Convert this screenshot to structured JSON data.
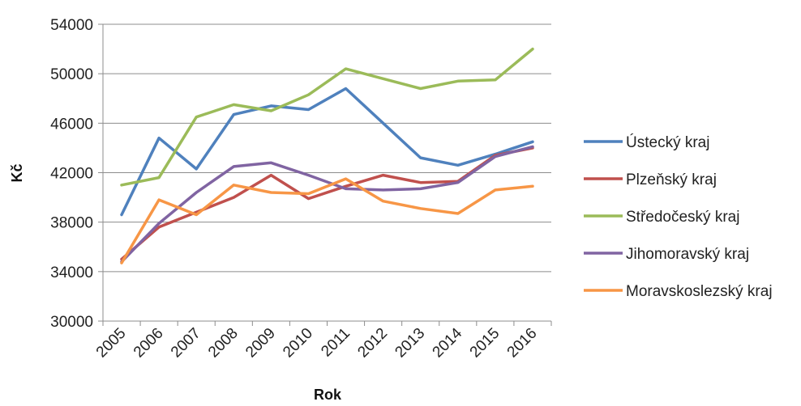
{
  "chart_data": {
    "type": "line",
    "title": "",
    "xlabel": "Rok",
    "ylabel": "Kč",
    "x": [
      "2005",
      "2006",
      "2007",
      "2008",
      "2009",
      "2010",
      "2011",
      "2012",
      "2013",
      "2014",
      "2015",
      "2016"
    ],
    "ylim": [
      30000,
      54000
    ],
    "yticks": [
      30000,
      34000,
      38000,
      42000,
      46000,
      50000,
      54000
    ],
    "grid": "horizontal",
    "legend": "right",
    "series": [
      {
        "name": "Ústecký kraj",
        "color": "#4F81BD",
        "values": [
          38600,
          44800,
          42300,
          46700,
          47400,
          47100,
          48800,
          46000,
          43200,
          42600,
          43500,
          44500
        ]
      },
      {
        "name": "Plzeňský kraj",
        "color": "#C0504D",
        "values": [
          35000,
          37600,
          38800,
          40000,
          41800,
          39900,
          40900,
          41800,
          41200,
          41300,
          43400,
          44000
        ]
      },
      {
        "name": "Středočeský kraj",
        "color": "#9BBB59",
        "values": [
          41000,
          41600,
          46500,
          47500,
          47000,
          48300,
          50400,
          49600,
          48800,
          49400,
          49500,
          52000
        ]
      },
      {
        "name": "Jihomoravský kraj",
        "color": "#8064A2",
        "values": [
          34800,
          37900,
          40400,
          42500,
          42800,
          41800,
          40700,
          40600,
          40700,
          41200,
          43300,
          44100
        ]
      },
      {
        "name": "Moravskoslezský kraj",
        "color": "#F79646",
        "values": [
          34700,
          39800,
          38600,
          41000,
          40400,
          40300,
          41500,
          39700,
          39100,
          38700,
          40600,
          40900
        ]
      }
    ]
  }
}
